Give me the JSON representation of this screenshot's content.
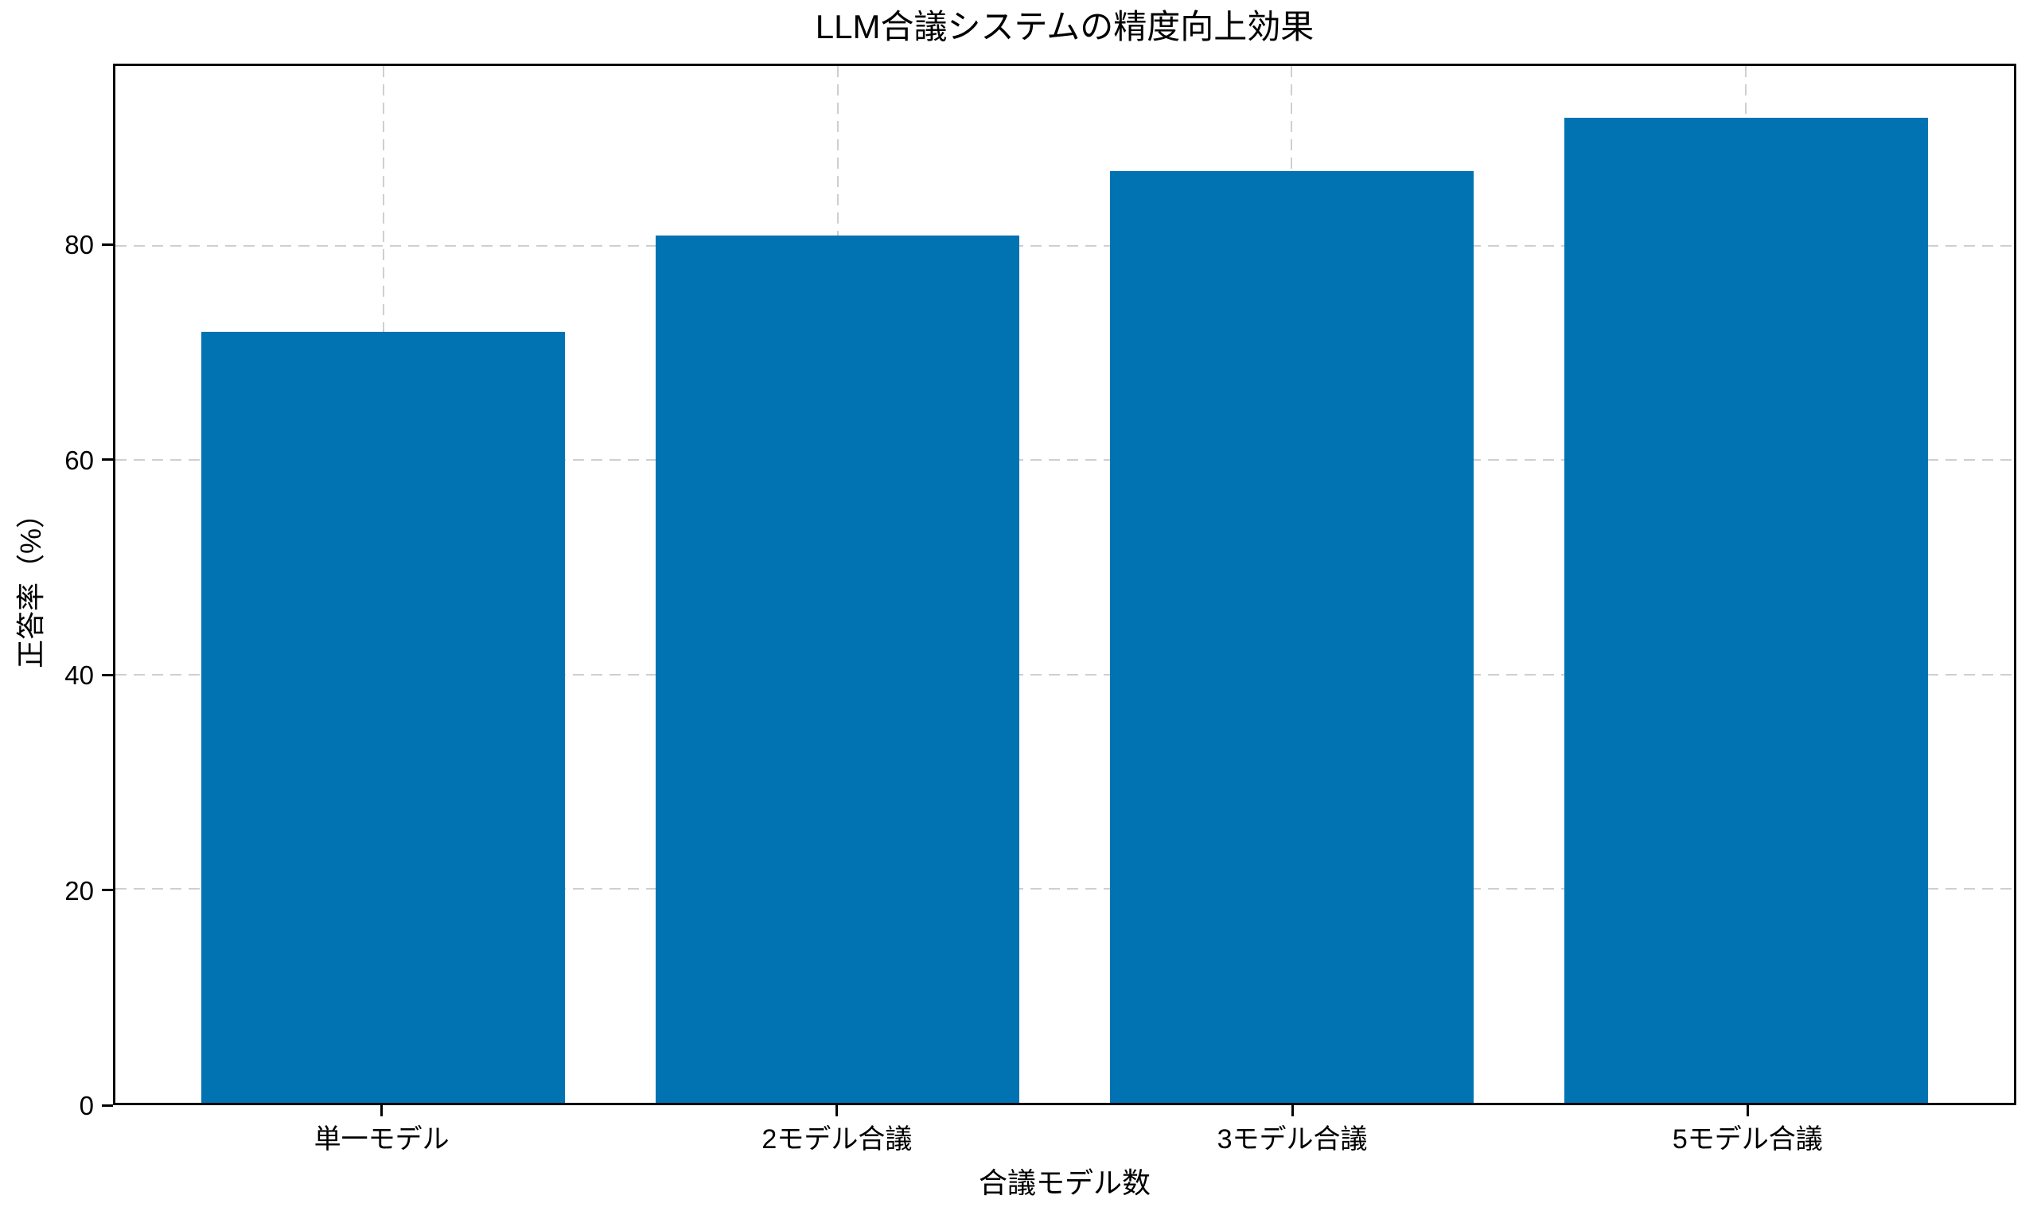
{
  "chart_data": {
    "type": "bar",
    "title": "LLM合議システムの精度向上効果",
    "xlabel": "合議モデル数",
    "ylabel": "正答率（%）",
    "categories": [
      "単一モデル",
      "2モデル合議",
      "3モデル合議",
      "5モデル合議"
    ],
    "values": [
      72,
      81,
      87,
      92
    ],
    "yticks": [
      0,
      20,
      40,
      60,
      80
    ],
    "ylim": [
      0,
      96.8
    ],
    "bar_color": "#0173b2",
    "grid": "dashed, horizontal and vertical",
    "grid_color": "#cfcfcf",
    "spine_color": "#000000",
    "background_color": "#ffffff",
    "legend": "none"
  }
}
